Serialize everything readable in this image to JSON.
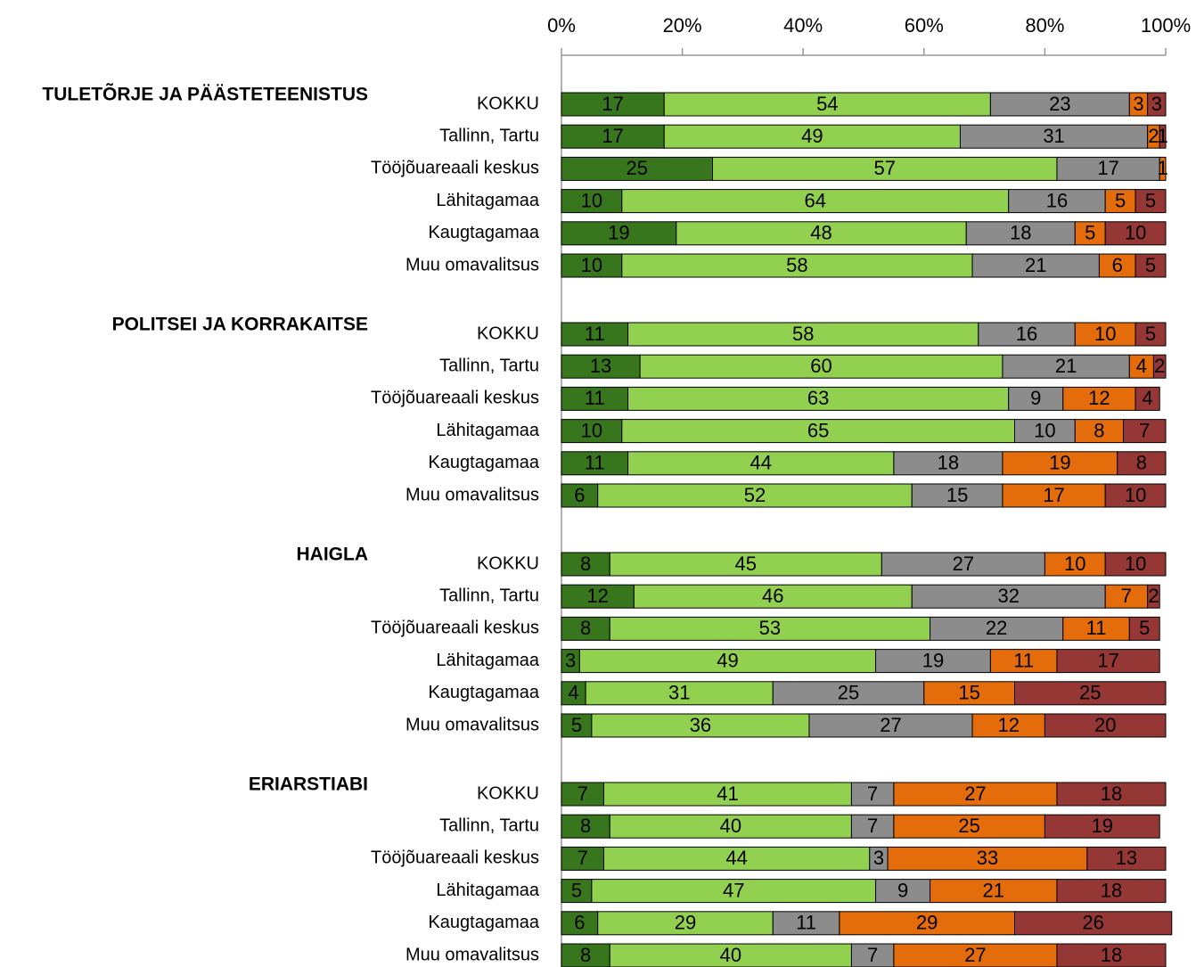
{
  "chart_data": {
    "type": "stacked-bar",
    "xlim": [
      0,
      100
    ],
    "xticks": [
      {
        "value": 0,
        "label": "0%"
      },
      {
        "value": 20,
        "label": "20%"
      },
      {
        "value": 40,
        "label": "40%"
      },
      {
        "value": 60,
        "label": "60%"
      },
      {
        "value": 80,
        "label": "80%"
      },
      {
        "value": 100,
        "label": "100%"
      }
    ],
    "colors": [
      "#38761d",
      "#92d050",
      "#8c8c8c",
      "#e46c0a",
      "#953735"
    ],
    "groups": [
      {
        "title": "TULETÕRJE JA PÄÄSTETEENISTUS",
        "categories": [
          "KOKKU",
          "Tallinn, Tartu",
          "Tööjõuareaali keskus",
          "Lähitagamaa",
          "Kaugtagamaa",
          "Muu omavalitsus"
        ],
        "rows": [
          [
            17,
            54,
            23,
            3,
            3
          ],
          [
            17,
            49,
            31,
            2,
            1
          ],
          [
            25,
            57,
            17,
            1,
            null
          ],
          [
            10,
            64,
            16,
            5,
            5
          ],
          [
            19,
            48,
            18,
            5,
            10
          ],
          [
            10,
            58,
            21,
            6,
            5
          ]
        ]
      },
      {
        "title": "POLITSEI JA KORRAKAITSE",
        "categories": [
          "KOKKU",
          "Tallinn, Tartu",
          "Tööjõuareaali keskus",
          "Lähitagamaa",
          "Kaugtagamaa",
          "Muu omavalitsus"
        ],
        "rows": [
          [
            11,
            58,
            16,
            10,
            5
          ],
          [
            13,
            60,
            21,
            4,
            2
          ],
          [
            11,
            63,
            9,
            12,
            4
          ],
          [
            10,
            65,
            10,
            8,
            7
          ],
          [
            11,
            44,
            18,
            19,
            8
          ],
          [
            6,
            52,
            15,
            17,
            10
          ]
        ]
      },
      {
        "title": "HAIGLA",
        "categories": [
          "KOKKU",
          "Tallinn, Tartu",
          "Tööjõuareaali keskus",
          "Lähitagamaa",
          "Kaugtagamaa",
          "Muu omavalitsus"
        ],
        "rows": [
          [
            8,
            45,
            27,
            10,
            10
          ],
          [
            12,
            46,
            32,
            7,
            2
          ],
          [
            8,
            53,
            22,
            11,
            5
          ],
          [
            3,
            49,
            19,
            11,
            17
          ],
          [
            4,
            31,
            25,
            15,
            25
          ],
          [
            5,
            36,
            27,
            12,
            20
          ]
        ]
      },
      {
        "title": "ERIARSTIABI",
        "categories": [
          "KOKKU",
          "Tallinn, Tartu",
          "Tööjõuareaali keskus",
          "Lähitagamaa",
          "Kaugtagamaa",
          "Muu omavalitsus"
        ],
        "rows": [
          [
            7,
            41,
            7,
            27,
            18
          ],
          [
            8,
            40,
            7,
            25,
            19
          ],
          [
            7,
            44,
            3,
            33,
            13
          ],
          [
            5,
            47,
            9,
            21,
            18
          ],
          [
            6,
            29,
            11,
            29,
            26
          ],
          [
            8,
            40,
            7,
            27,
            18
          ]
        ]
      }
    ]
  }
}
